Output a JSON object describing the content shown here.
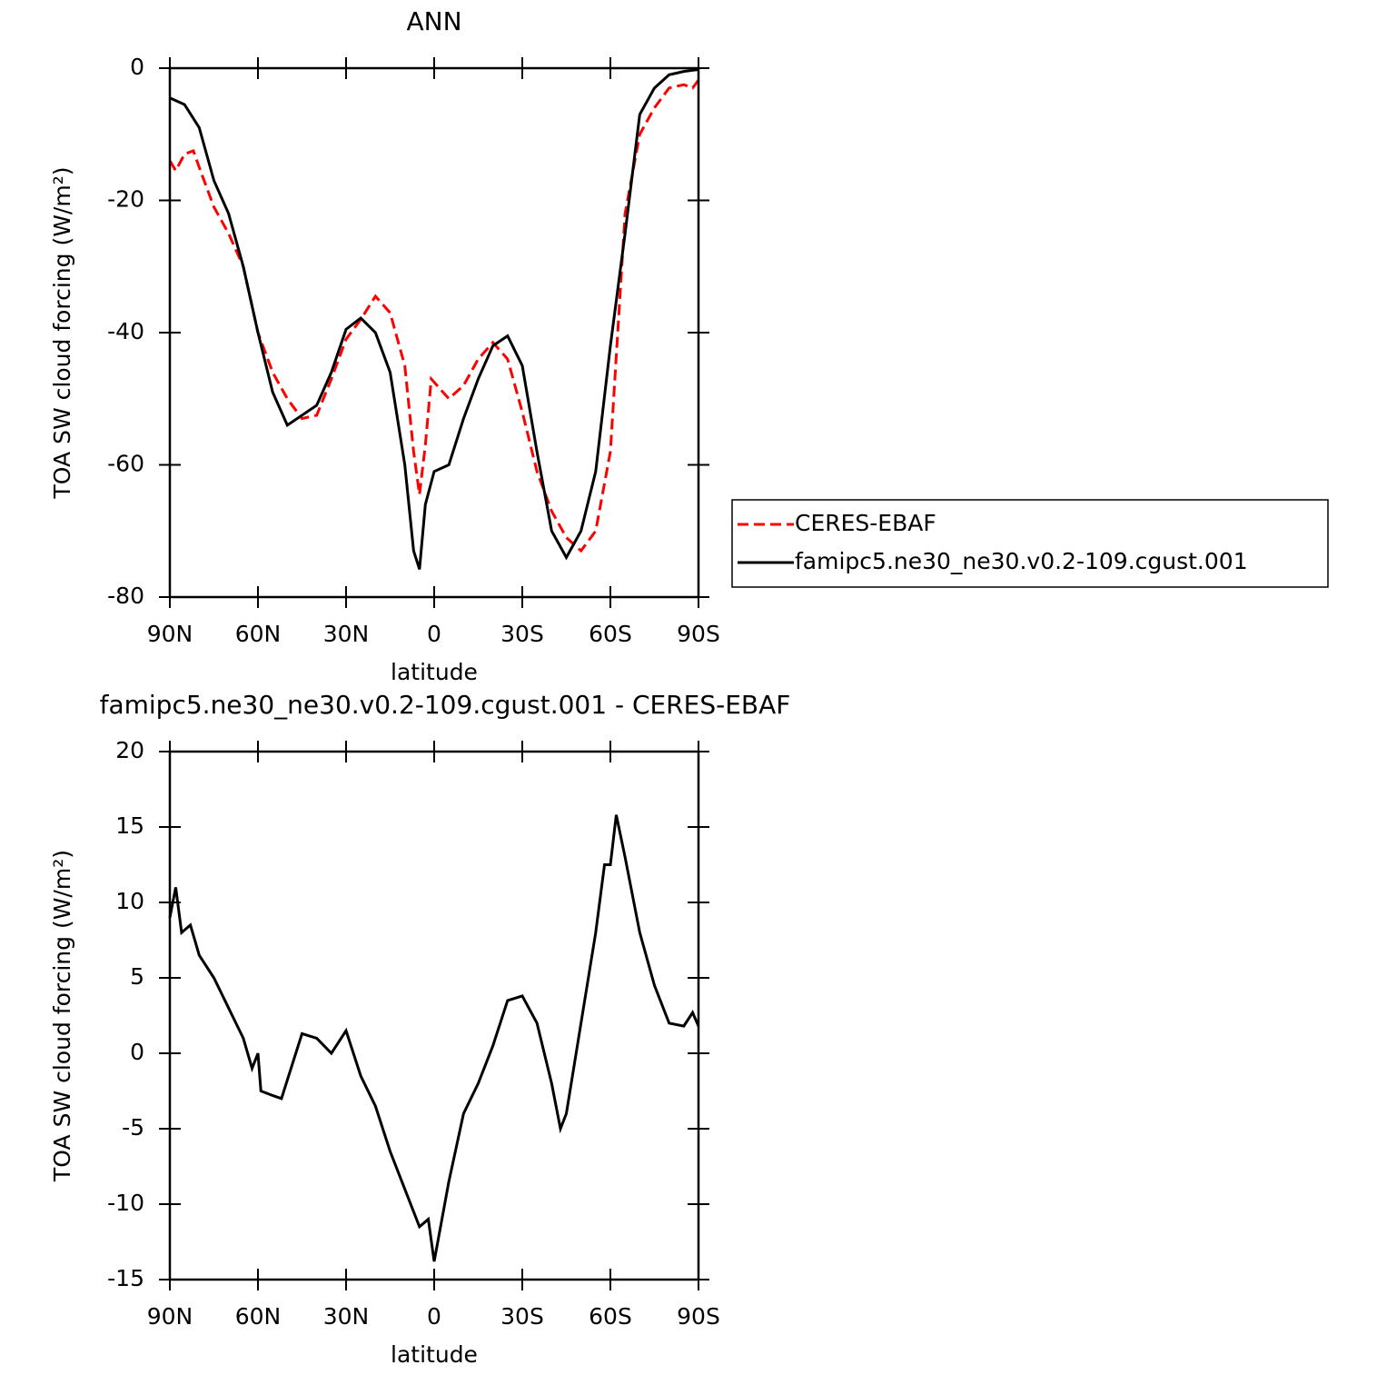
{
  "chart_data": [
    {
      "type": "line",
      "title": "ANN",
      "xlabel": "latitude",
      "ylabel": "TOA SW cloud forcing (W/m²)",
      "xlim": [
        90,
        -90
      ],
      "xticks": [
        {
          "value": 90,
          "label": "90N"
        },
        {
          "value": 60,
          "label": "60N"
        },
        {
          "value": 30,
          "label": "30N"
        },
        0,
        {
          "value": -30,
          "label": "30S"
        },
        {
          "value": -60,
          "label": "60S"
        },
        {
          "value": -90,
          "label": "90S"
        }
      ],
      "ylim": [
        -80,
        0
      ],
      "yticks": [
        -80,
        -60,
        -40,
        -20,
        0
      ],
      "legend": "outside-right",
      "series": [
        {
          "name": "CERES-EBAF",
          "color": "#ff0000",
          "dash": true,
          "x": [
            90,
            88,
            85,
            82,
            80,
            75,
            70,
            65,
            60,
            55,
            50,
            45,
            40,
            35,
            30,
            25,
            20,
            15,
            10,
            7,
            5,
            3,
            1,
            -5,
            -10,
            -15,
            -20,
            -25,
            -30,
            -35,
            -40,
            -45,
            -50,
            -55,
            -60,
            -65,
            -70,
            -75,
            -80,
            -85,
            -88,
            -90
          ],
          "values": [
            -14,
            -15.5,
            -13,
            -12.5,
            -15,
            -21,
            -25,
            -30,
            -40,
            -46,
            -50,
            -53,
            -52.5,
            -47,
            -41,
            -38,
            -34.5,
            -37,
            -45,
            -58,
            -64.5,
            -57,
            -47,
            -50,
            -48,
            -44,
            -41.5,
            -44,
            -52,
            -61,
            -67,
            -71,
            -73,
            -70,
            -58,
            -22,
            -10,
            -6,
            -3,
            -2.5,
            -3,
            -1.8
          ]
        },
        {
          "name": "famipc5.ne30_ne30.v0.2-109.cgust.001",
          "color": "#000000",
          "dash": false,
          "x": [
            90,
            85,
            80,
            75,
            70,
            65,
            60,
            55,
            50,
            45,
            40,
            35,
            30,
            25,
            20,
            15,
            10,
            7,
            5,
            3,
            0,
            -5,
            -10,
            -15,
            -20,
            -25,
            -30,
            -35,
            -40,
            -45,
            -50,
            -55,
            -60,
            -65,
            -70,
            -75,
            -80,
            -85,
            -90
          ],
          "values": [
            -4.5,
            -5.5,
            -9,
            -17,
            -22,
            -30,
            -40,
            -49,
            -54,
            -52.5,
            -51,
            -46,
            -39.5,
            -37.8,
            -40,
            -46,
            -60,
            -73,
            -75.8,
            -66,
            -61,
            -60,
            -53,
            -47,
            -42,
            -40.5,
            -45,
            -58,
            -70,
            -74,
            -70,
            -61,
            -42,
            -25,
            -7,
            -3,
            -1,
            -0.5,
            -0.2
          ]
        }
      ]
    },
    {
      "type": "line",
      "title": "famipc5.ne30_ne30.v0.2-109.cgust.001 - CERES-EBAF",
      "xlabel": "latitude",
      "ylabel": "TOA SW cloud forcing (W/m²)",
      "xlim": [
        90,
        -90
      ],
      "xticks": [
        {
          "value": 90,
          "label": "90N"
        },
        {
          "value": 60,
          "label": "60N"
        },
        {
          "value": 30,
          "label": "30N"
        },
        0,
        {
          "value": -30,
          "label": "30S"
        },
        {
          "value": -60,
          "label": "60S"
        },
        {
          "value": -90,
          "label": "90S"
        }
      ],
      "ylim": [
        -15,
        20
      ],
      "yticks": [
        -15,
        -10,
        -5,
        0,
        5,
        10,
        15,
        20
      ],
      "series": [
        {
          "color": "#000000",
          "dash": false,
          "x": [
            90,
            88,
            86,
            83,
            80,
            75,
            70,
            65,
            62,
            60,
            59,
            55,
            52,
            45,
            40,
            35,
            30,
            25,
            20,
            15,
            10,
            5,
            2,
            0,
            -5,
            -10,
            -15,
            -20,
            -25,
            -30,
            -35,
            -40,
            -43,
            -45,
            -50,
            -55,
            -58,
            -60,
            -62,
            -65,
            -70,
            -75,
            -80,
            -85,
            -88,
            -90
          ],
          "values": [
            9,
            11,
            8,
            8.5,
            6.5,
            5,
            3,
            1,
            -1,
            0,
            -2.5,
            -2.8,
            -3,
            1.3,
            1,
            0,
            1.5,
            -1.5,
            -3.5,
            -6.5,
            -9,
            -11.5,
            -11,
            -13.8,
            -8.5,
            -4,
            -2,
            0.5,
            3.5,
            3.8,
            2,
            -2,
            -5,
            -4,
            2,
            8,
            12.5,
            12.5,
            15.8,
            13,
            8,
            4.5,
            2,
            1.8,
            2.7,
            1.8
          ]
        }
      ]
    }
  ]
}
